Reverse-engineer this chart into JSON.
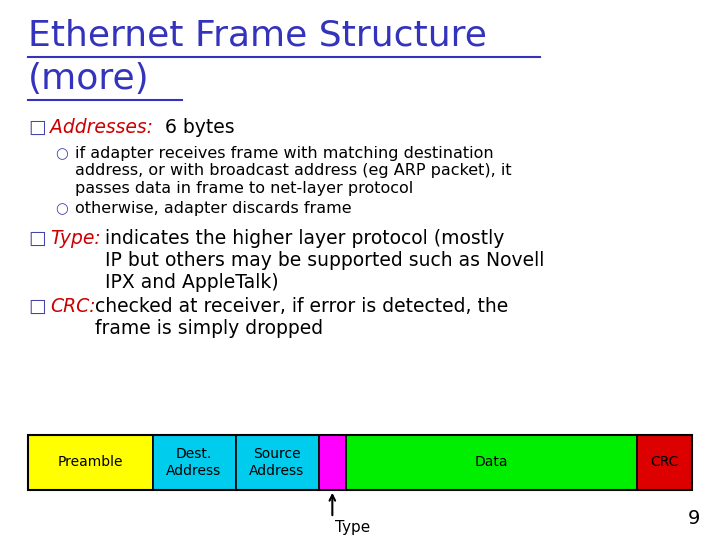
{
  "title_line1": "Ethernet Frame Structure",
  "title_line2": "(more)",
  "title_color": "#3333bb",
  "background_color": "#ffffff",
  "black_color": "#000000",
  "red_color": "#cc0000",
  "blue_bullet_color": "#4444aa",
  "title_fontsize": 26,
  "body_fontsize": 13.5,
  "sub_fontsize": 11.5,
  "page_number": "9",
  "frame_segments": [
    {
      "label": "Preamble",
      "color": "#ffff00",
      "weight": 18
    },
    {
      "label": "Dest.\nAddress",
      "color": "#00ccee",
      "weight": 12
    },
    {
      "label": "Source\nAddress",
      "color": "#00ccee",
      "weight": 12
    },
    {
      "label": "",
      "color": "#ff00ff",
      "weight": 4
    },
    {
      "label": "Data",
      "color": "#00ee00",
      "weight": 42
    },
    {
      "label": "CRC",
      "color": "#dd0000",
      "weight": 8
    }
  ]
}
